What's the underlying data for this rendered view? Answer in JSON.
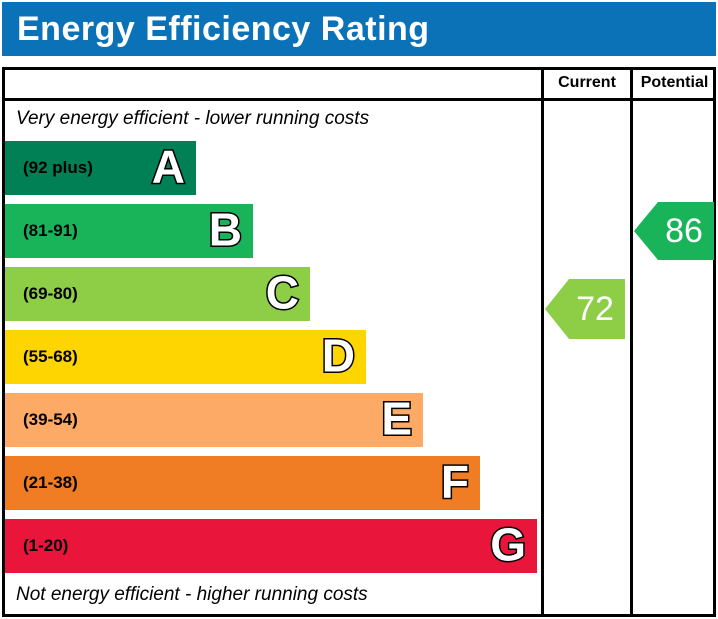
{
  "header": {
    "title": "Energy Efficiency Rating",
    "bar_color": "#0b72b8"
  },
  "table": {
    "current_header": "Current",
    "potential_header": "Potential"
  },
  "chart_data": {
    "type": "bar",
    "title": "Energy Efficiency Rating",
    "annotations": {
      "top": "Very energy efficient - lower running costs",
      "bottom": "Not energy efficient - higher running costs"
    },
    "bands": [
      {
        "letter": "A",
        "range_label": "(92 plus)",
        "min": 92,
        "max": 100,
        "color": "#008054"
      },
      {
        "letter": "B",
        "range_label": "(81-91)",
        "min": 81,
        "max": 91,
        "color": "#19b459"
      },
      {
        "letter": "C",
        "range_label": "(69-80)",
        "min": 69,
        "max": 80,
        "color": "#8dce46"
      },
      {
        "letter": "D",
        "range_label": "(55-68)",
        "min": 55,
        "max": 68,
        "color": "#ffd500"
      },
      {
        "letter": "E",
        "range_label": "(39-54)",
        "min": 39,
        "max": 54,
        "color": "#fcaa65"
      },
      {
        "letter": "F",
        "range_label": "(21-38)",
        "min": 21,
        "max": 38,
        "color": "#f07d23"
      },
      {
        "letter": "G",
        "range_label": "(1-20)",
        "min": 1,
        "max": 20,
        "color": "#e9153b"
      }
    ],
    "markers": {
      "current": {
        "label": "Current",
        "value": 72,
        "band": "C",
        "color": "#8dce46"
      },
      "potential": {
        "label": "Potential",
        "value": 86,
        "band": "B",
        "color": "#19b459"
      }
    }
  }
}
